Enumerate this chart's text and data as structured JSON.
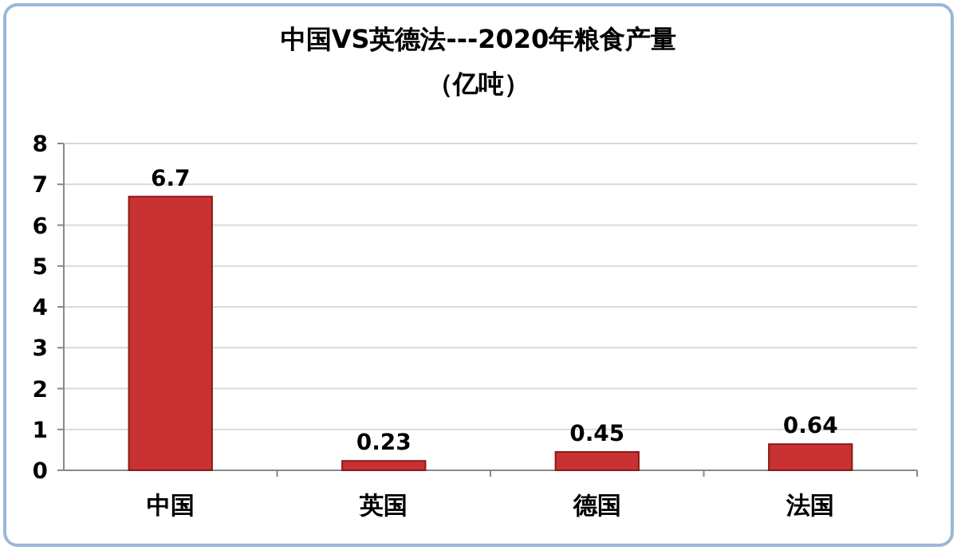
{
  "chart_data": {
    "type": "bar",
    "title": "中国VS英德法---2020年粮食产量",
    "subtitle": "（亿吨）",
    "categories": [
      "中国",
      "英国",
      "德国",
      "法国"
    ],
    "values": [
      6.7,
      0.23,
      0.45,
      0.64
    ],
    "color": "#c83232",
    "ylim": [
      0,
      8
    ],
    "yticks": [
      0,
      1,
      2,
      3,
      4,
      5,
      6,
      7,
      8
    ],
    "grid": "y",
    "data_labels": true
  }
}
